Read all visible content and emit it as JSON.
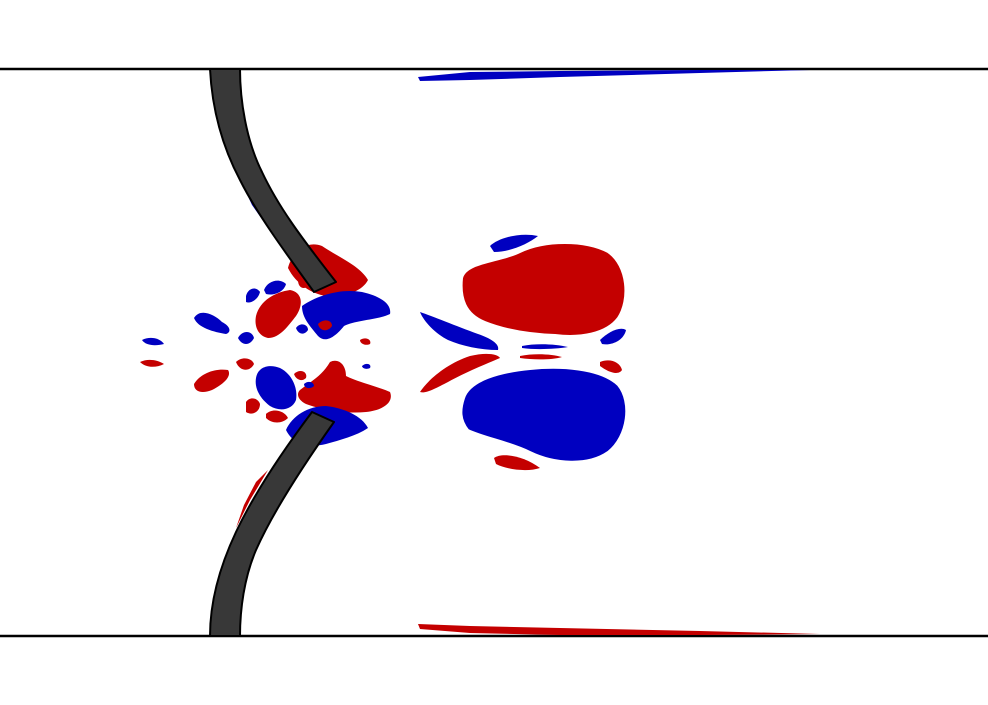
{
  "figure": {
    "kind": "vorticity-contour-snapshot",
    "colors": {
      "background": "#ffffff",
      "positive_vorticity": "#c40000",
      "negative_vorticity": "#0000c0",
      "leaflet_fill": "#383838",
      "outline": "#000000"
    },
    "elements": [
      "channel-top-wall",
      "channel-bottom-wall",
      "upper-leaflet",
      "lower-leaflet",
      "vortex-pair",
      "shear-layers",
      "small-vortices"
    ]
  }
}
